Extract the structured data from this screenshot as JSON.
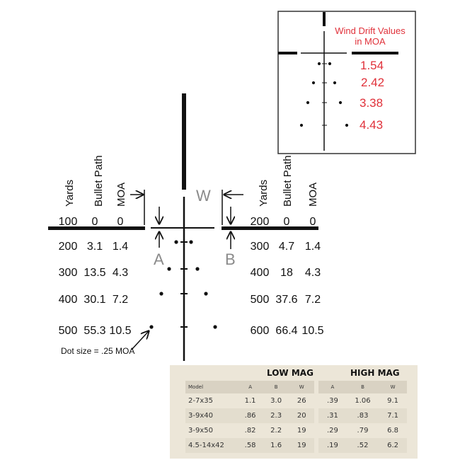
{
  "left_table": {
    "headers": [
      "Yards",
      "Bullet Path",
      "MOA"
    ],
    "rows": [
      [
        "100",
        "0",
        "0"
      ],
      [
        "200",
        "3.1",
        "1.4"
      ],
      [
        "300",
        "13.5",
        "4.3"
      ],
      [
        "400",
        "30.1",
        "7.2"
      ],
      [
        "500",
        "55.3",
        "10.5"
      ]
    ]
  },
  "right_table": {
    "headers": [
      "Yards",
      "Bullet Path",
      "MOA"
    ],
    "rows": [
      [
        "200",
        "0",
        "0"
      ],
      [
        "300",
        "4.7",
        "1.4"
      ],
      [
        "400",
        "18",
        "4.3"
      ],
      [
        "500",
        "37.6",
        "7.2"
      ],
      [
        "600",
        "66.4",
        "10.5"
      ]
    ]
  },
  "labels": {
    "w": "W",
    "a": "A",
    "b": "B",
    "dot_size": "Dot size = .25 MOA"
  },
  "inset": {
    "title_line1": "Wind Drift Values",
    "title_line2": "in MOA",
    "values": [
      "1.54",
      "2.42",
      "3.38",
      "4.43"
    ]
  },
  "mag_table": {
    "low_label": "LOW MAG",
    "high_label": "HIGH MAG",
    "headers": [
      "Model",
      "A",
      "B",
      "W",
      "A",
      "B",
      "W"
    ],
    "rows": [
      [
        "2-7x35",
        "1.1",
        "3.0",
        "26",
        ".39",
        "1.06",
        "9.1"
      ],
      [
        "3-9x40",
        ".86",
        "2.3",
        "20",
        ".31",
        ".83",
        "7.1"
      ],
      [
        "3-9x50",
        ".82",
        "2.2",
        "19",
        ".29",
        ".79",
        "6.8"
      ],
      [
        "4.5-14x42",
        ".58",
        "1.6",
        "19",
        ".19",
        ".52",
        "6.2"
      ]
    ]
  },
  "colors": {
    "reticle": "#111111",
    "label_gray": "#8a8a8a",
    "wind_red": "#e0313a",
    "table_bg": "#ece6d8"
  }
}
